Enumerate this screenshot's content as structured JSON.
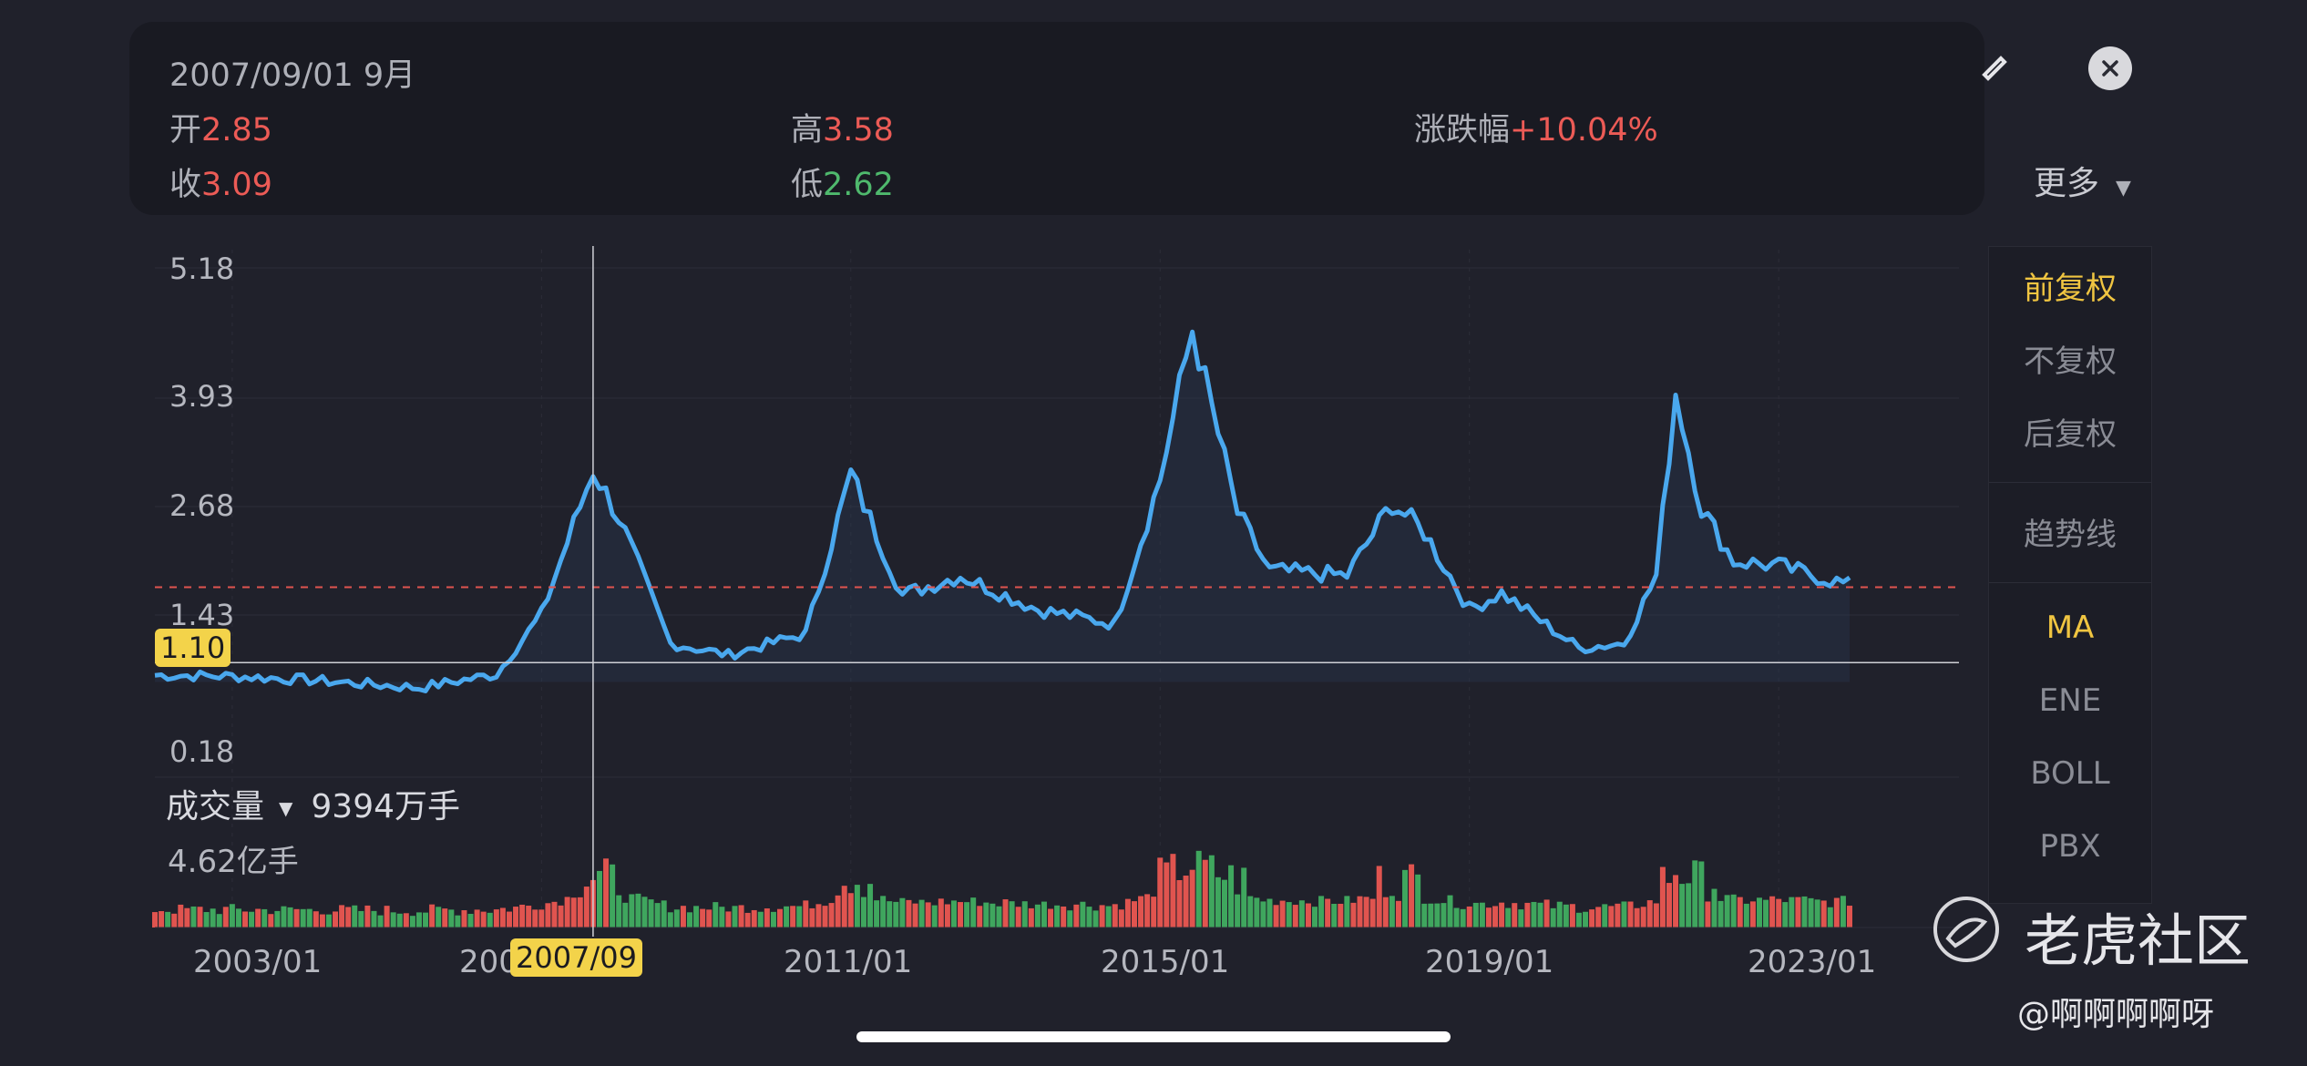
{
  "tooltip": {
    "date": "2007/09/01 9月",
    "open_label": "开",
    "open_value": "2.85",
    "high_label": "高",
    "high_value": "3.58",
    "change_label": "涨跌幅",
    "change_value": "+10.04%",
    "close_label": "收",
    "close_value": "3.09",
    "low_label": "低",
    "low_value": "2.62"
  },
  "toolbar": {
    "more_label": "更多"
  },
  "side_menu": {
    "items": [
      "前复权",
      "不复权",
      "后复权",
      "趋势线",
      "MA",
      "ENE",
      "BOLL",
      "PBX"
    ],
    "active": [
      "前复权",
      "MA"
    ]
  },
  "price_axis": {
    "ticks": [
      "5.18",
      "3.93",
      "2.68",
      "1.43",
      "0.18"
    ],
    "current_marker": "1.10"
  },
  "time_axis": {
    "labels": [
      "2003/01",
      "200",
      "2011/01",
      "2015/01",
      "2019/01",
      "2023/01"
    ],
    "crosshair_label": "2007/09"
  },
  "volume": {
    "title": "成交量",
    "value": "9394万手",
    "max_label": "4.62亿手"
  },
  "watermark": {
    "brand": "老虎社区",
    "user": "@啊啊啊啊呀"
  },
  "colors": {
    "line": "#4aa8ee",
    "up": "#e0544f",
    "down": "#3fa65e",
    "accent": "#f3d34a",
    "dashed": "#e0544f"
  },
  "chart_data": {
    "type": "line",
    "x_range": [
      "2002/01",
      "2023/12"
    ],
    "ylim": [
      0.18,
      5.18
    ],
    "crosshair": "2007/09",
    "current_price": 1.1,
    "reference_line": 1.88,
    "price_keypoints": [
      [
        "2002/01",
        0.97
      ],
      [
        "2003/01",
        0.96
      ],
      [
        "2004/01",
        0.92
      ],
      [
        "2005/06",
        0.84
      ],
      [
        "2006/06",
        0.98
      ],
      [
        "2007/01",
        1.6
      ],
      [
        "2007/09",
        3.09
      ],
      [
        "2008/01",
        2.6
      ],
      [
        "2008/09",
        1.3
      ],
      [
        "2009/06",
        1.18
      ],
      [
        "2010/06",
        1.4
      ],
      [
        "2011/01",
        3.05
      ],
      [
        "2011/09",
        1.8
      ],
      [
        "2012/06",
        2.0
      ],
      [
        "2013/06",
        1.65
      ],
      [
        "2014/06",
        1.5
      ],
      [
        "2015/01",
        3.0
      ],
      [
        "2015/06",
        4.55
      ],
      [
        "2016/01",
        2.65
      ],
      [
        "2016/06",
        2.05
      ],
      [
        "2017/06",
        2.0
      ],
      [
        "2018/01",
        2.75
      ],
      [
        "2018/06",
        2.45
      ],
      [
        "2019/01",
        1.65
      ],
      [
        "2019/06",
        1.82
      ],
      [
        "2020/06",
        1.25
      ],
      [
        "2021/01",
        1.3
      ],
      [
        "2021/06",
        2.0
      ],
      [
        "2021/09",
        3.9
      ],
      [
        "2022/01",
        2.7
      ],
      [
        "2022/06",
        2.15
      ],
      [
        "2023/01",
        2.1
      ],
      [
        "2023/12",
        1.9
      ]
    ],
    "volume": {
      "unit": "亿手",
      "max": 4.62,
      "crosshair_value": "9394万手"
    }
  }
}
